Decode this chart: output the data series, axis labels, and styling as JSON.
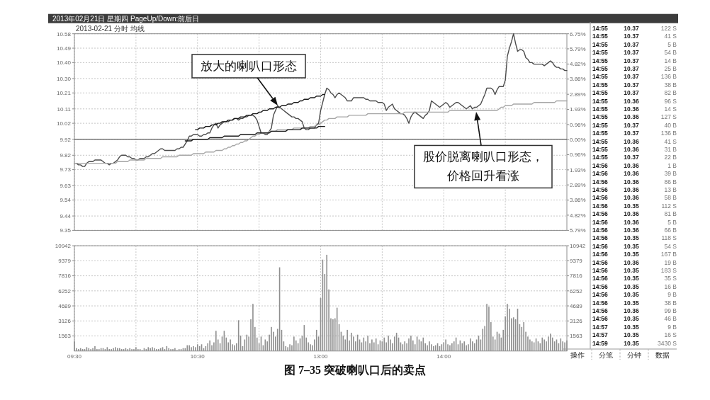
{
  "chart_data": [
    {
      "type": "line",
      "title": "2013年02月21日 星期四 PageUp/Down:前后日",
      "subtitle": "2013-02-21 分时 均线",
      "categories": [
        null,
        null,
        null,
        null,
        null,
        null,
        null,
        null,
        null,
        null,
        null,
        null,
        null,
        null,
        null,
        null,
        null,
        null,
        null,
        null,
        null,
        null,
        null,
        null,
        null,
        null,
        null,
        null,
        null,
        null,
        null,
        null,
        null,
        null,
        null,
        null,
        null,
        null,
        null,
        null,
        null,
        null,
        null,
        null,
        null,
        null,
        null,
        null,
        null,
        null,
        null,
        null,
        null,
        null,
        null,
        null,
        null,
        null,
        null,
        null,
        null,
        null,
        null,
        null,
        null,
        null,
        null,
        null,
        null,
        null,
        null,
        null,
        null,
        null,
        null,
        null,
        null,
        null,
        null,
        null,
        null,
        null,
        null,
        null,
        null,
        null,
        null,
        null,
        null,
        null,
        null,
        null,
        null,
        null,
        null,
        null,
        null,
        null,
        null,
        null,
        null,
        null,
        null,
        null,
        null,
        null,
        null,
        null,
        null,
        null,
        null,
        null,
        null,
        null,
        null,
        null,
        null,
        null,
        null,
        null,
        null,
        null,
        null,
        null,
        null,
        null,
        null,
        null,
        null,
        null,
        null,
        null,
        null,
        null,
        null,
        null,
        null,
        null,
        null,
        null,
        null,
        null,
        null,
        null,
        null,
        null,
        null,
        null,
        null,
        null,
        null,
        null,
        null,
        null,
        null,
        null,
        null,
        null,
        null,
        null,
        null,
        null,
        null,
        null,
        null,
        null,
        null,
        null,
        null,
        null,
        null,
        null,
        null,
        null,
        null,
        null,
        null,
        null,
        null,
        null,
        null,
        null,
        null,
        null,
        null,
        null,
        null,
        null,
        null,
        null,
        null,
        null,
        null,
        null,
        null,
        null,
        null,
        null,
        null,
        null,
        null,
        null,
        null,
        null,
        null,
        null,
        null,
        null,
        null,
        null,
        null,
        null,
        null,
        null,
        null,
        null,
        null,
        null,
        null,
        null,
        null,
        null,
        null,
        null,
        null,
        null,
        null,
        null,
        null,
        null,
        null,
        null,
        null,
        null,
        null,
        null,
        null,
        null,
        null,
        null,
        null
      ],
      "ylim": [
        9.35,
        10.58
      ],
      "yticks": [
        9.35,
        9.44,
        9.54,
        9.63,
        9.73,
        9.82,
        9.92,
        10.02,
        10.11,
        10.21,
        {
          "value": 10.3,
          "label": "10.30"
        },
        {
          "value": 10.4,
          "label": "10.40"
        },
        10.49,
        10.58
      ],
      "y2lim": [
        -5.79,
        6.75
      ],
      "y2ticks": [
        {
          "value": -5.79,
          "label": "5.79%"
        },
        {
          "value": -4.82,
          "label": "4.82%"
        },
        {
          "value": -3.86,
          "label": "3.86%"
        },
        {
          "value": -2.89,
          "label": "2.89%"
        },
        {
          "value": -1.93,
          "label": "1.93%"
        },
        {
          "value": -0.96,
          "label": "0.96%"
        },
        {
          "value": 0,
          "label": "0.00%"
        },
        {
          "value": 0.96,
          "label": "0.96%"
        },
        {
          "value": 1.93,
          "label": "1.93%"
        },
        {
          "value": 2.89,
          "label": "2.89%"
        },
        {
          "value": 3.86,
          "label": "3.86%"
        },
        {
          "value": 4.82,
          "label": "4.82%"
        },
        {
          "value": 5.79,
          "label": "5.79%"
        },
        {
          "value": 6.75,
          "label": "6.75%"
        }
      ],
      "grid": true,
      "ref_lines": [
        {
          "axis": "y",
          "value": 9.92,
          "color": "#555555"
        }
      ],
      "series": [
        {
          "color": "#4d4d4d",
          "values": [
            9.77,
            9.77,
            9.76,
            9.76,
            9.75,
            9.75,
            9.77,
            9.78,
            9.78,
            9.78,
            9.79,
            9.79,
            9.79,
            9.79,
            9.78,
            9.77,
            9.77,
            9.76,
            9.77,
            9.77,
            9.78,
            9.79,
            9.81,
            9.82,
            9.82,
            9.82,
            9.81,
            9.81,
            9.8,
            9.8,
            9.79,
            9.79,
            9.8,
            9.8,
            9.8,
            9.81,
            9.81,
            9.82,
            9.83,
            9.83,
            9.84,
            9.85,
            9.86,
            9.86,
            9.85,
            9.85,
            9.85,
            9.85,
            9.85,
            9.85,
            9.86,
            9.86,
            9.87,
            9.87,
            9.89,
            9.91,
            9.94,
            9.94,
            9.95,
            9.95,
            9.95,
            9.94,
            9.94,
            9.95,
            9.95,
            9.96,
            9.96,
            9.99,
            10.01,
            10.02,
            9.99,
            10.01,
            10.02,
            10.03,
            10.03,
            10.03,
            10.04,
            10.04,
            10.05,
            10.05,
            10.04,
            10.05,
            10.05,
            10.06,
            10.06,
            10.07,
            10.07,
            10.07,
            10.06,
            10.04,
            10.0,
            9.96,
            9.96,
            9.95,
            9.95,
            9.97,
            9.99,
            10.07,
            10.1,
            10.13,
            10.12,
            10.11,
            10.1,
            10.09,
            10.08,
            10.07,
            10.06,
            10.06,
            10.05,
            10.05,
            10.04,
            10.03,
            9.99,
            9.98,
            9.98,
            9.99,
            9.99,
            9.99,
            10.01,
            10.02,
            10.1,
            10.15,
            10.2,
            10.24,
            10.23,
            10.21,
            10.2,
            10.18,
            10.2,
            10.21,
            10.2,
            10.19,
            10.18,
            10.16,
            10.16,
            10.16,
            10.18,
            10.18,
            10.18,
            10.18,
            10.18,
            10.18,
            10.17,
            10.17,
            10.16,
            10.16,
            10.16,
            10.16,
            10.15,
            10.15,
            10.15,
            10.14,
            10.1,
            10.12,
            10.13,
            10.14,
            10.11,
            10.1,
            10.09,
            10.08,
            10.08,
            10.07,
            10.05,
            10.02,
            10.06,
            10.08,
            10.09,
            10.08,
            10.07,
            10.06,
            10.05,
            10.07,
            10.08,
            10.1,
            10.16,
            10.15,
            10.14,
            10.13,
            10.12,
            10.13,
            10.14,
            10.15,
            10.14,
            10.12,
            10.13,
            10.14,
            10.15,
            10.15,
            10.14,
            10.13,
            10.12,
            10.11,
            10.12,
            10.13,
            10.11,
            10.12,
            10.12,
            10.13,
            10.14,
            10.17,
            10.2,
            10.24,
            10.24,
            10.24,
            10.23,
            10.2,
            10.23,
            10.25,
            10.25,
            10.25,
            10.29,
            10.44,
            10.49,
            10.53,
            10.58,
            10.52,
            10.47,
            10.48,
            10.48,
            10.47,
            10.43,
            10.42,
            10.4,
            10.4,
            10.39,
            10.39,
            10.39,
            10.39,
            10.39,
            10.38,
            10.39,
            10.4,
            10.41,
            10.4,
            10.38,
            10.37,
            10.37,
            10.36,
            10.36,
            10.35,
            10.35
          ]
        },
        {
          "color": "#a6a6a6",
          "values": [
            9.77,
            9.77,
            9.77,
            9.77,
            9.77,
            9.77,
            9.77,
            9.77,
            9.77,
            9.77,
            9.77,
            9.77,
            9.77,
            9.77,
            9.77,
            9.77,
            9.77,
            9.77,
            9.77,
            9.77,
            9.77,
            9.78,
            9.78,
            9.78,
            9.78,
            9.78,
            9.78,
            9.79,
            9.79,
            9.79,
            9.79,
            9.79,
            9.79,
            9.79,
            9.79,
            9.8,
            9.8,
            9.8,
            9.8,
            9.8,
            9.8,
            9.8,
            9.8,
            9.81,
            9.81,
            9.81,
            9.81,
            9.81,
            9.81,
            9.81,
            9.81,
            9.82,
            9.82,
            9.82,
            9.82,
            9.82,
            9.82,
            9.82,
            9.83,
            9.83,
            9.83,
            9.83,
            9.83,
            9.83,
            9.84,
            9.84,
            9.84,
            9.84,
            9.84,
            9.85,
            9.85,
            9.85,
            9.85,
            9.86,
            9.86,
            9.87,
            9.87,
            9.88,
            9.88,
            9.89,
            9.89,
            9.9,
            9.9,
            9.91,
            9.91,
            9.92,
            9.93,
            9.94,
            9.94,
            9.95,
            9.95,
            9.96,
            9.96,
            9.96,
            9.96,
            9.97,
            9.97,
            9.97,
            9.97,
            9.98,
            9.98,
            9.98,
            9.98,
            9.98,
            9.98,
            9.98,
            9.98,
            9.99,
            9.99,
            9.99,
            9.99,
            9.99,
            9.99,
            9.99,
            9.99,
            10.0,
            10.0,
            10.0,
            10.01,
            10.01,
            10.02,
            10.03,
            10.04,
            10.04,
            10.05,
            10.05,
            10.05,
            10.05,
            10.06,
            10.06,
            10.06,
            10.06,
            10.06,
            10.06,
            10.07,
            10.07,
            10.07,
            10.07,
            10.07,
            10.07,
            10.07,
            10.07,
            10.07,
            10.08,
            10.08,
            10.08,
            10.08,
            10.08,
            10.08,
            10.08,
            10.08,
            10.08,
            10.08,
            10.08,
            10.08,
            10.08,
            10.08,
            10.08,
            10.08,
            10.08,
            10.08,
            10.09,
            10.09,
            10.09,
            10.09,
            10.09,
            10.09,
            10.09,
            10.09,
            10.09,
            10.09,
            10.09,
            10.09,
            10.09,
            10.09,
            10.09,
            10.09,
            10.09,
            10.09,
            10.09,
            10.09,
            10.09,
            10.09,
            10.1,
            10.1,
            10.1,
            10.1,
            10.1,
            10.1,
            10.1,
            10.1,
            10.1,
            10.1,
            10.1,
            10.1,
            10.1,
            10.1,
            10.1,
            10.1,
            10.1,
            10.1,
            10.1,
            10.1,
            10.1,
            10.1,
            10.1,
            10.1,
            10.11,
            10.12,
            10.12,
            10.13,
            10.13,
            10.13,
            10.13,
            10.14,
            10.14,
            10.14,
            10.14,
            10.14,
            10.14,
            10.14,
            10.14,
            10.14,
            10.14,
            10.15,
            10.15,
            10.15,
            10.15,
            10.15,
            10.15,
            10.15,
            10.15,
            10.15,
            10.15,
            10.15,
            10.16,
            10.16,
            10.16,
            10.16,
            10.16,
            10.16
          ]
        },
        {
          "color": "#1a1a1a",
          "values": [
            null,
            null,
            null,
            null,
            null,
            null,
            null,
            null,
            null,
            null,
            null,
            null,
            null,
            null,
            null,
            null,
            null,
            null,
            null,
            null,
            null,
            null,
            null,
            null,
            null,
            null,
            null,
            null,
            null,
            null,
            null,
            null,
            null,
            null,
            null,
            null,
            null,
            null,
            null,
            null,
            null,
            null,
            null,
            null,
            null,
            null,
            null,
            null,
            null,
            null,
            null,
            null,
            null,
            null,
            null,
            null,
            null,
            null,
            null,
            9.98,
            9.98,
            9.99,
            9.99,
            9.99,
            10.0,
            10.0,
            10.0,
            10.01,
            10.01,
            10.01,
            10.02,
            10.02,
            10.03,
            10.03,
            10.03,
            10.04,
            10.04,
            10.04,
            10.05,
            10.05,
            10.05,
            10.06,
            10.06,
            10.06,
            10.07,
            10.07,
            10.07,
            10.08,
            10.08,
            10.08,
            10.09,
            10.09,
            10.1,
            10.1,
            10.1,
            10.11,
            10.11,
            10.11,
            10.12,
            10.12,
            10.12,
            10.13,
            10.13,
            10.13,
            10.14,
            10.14,
            10.14,
            10.15,
            10.15,
            10.15,
            10.16,
            10.16,
            10.17,
            10.17,
            10.17,
            10.18,
            10.18,
            10.18,
            10.19,
            10.19,
            10.19,
            10.2,
            10.2,
            null,
            null,
            null,
            null,
            null,
            null,
            null,
            null,
            null,
            null,
            null,
            null,
            null,
            null,
            null,
            null,
            null,
            null,
            null,
            null,
            null,
            null,
            null,
            null,
            null,
            null,
            null,
            null,
            null,
            null,
            null,
            null,
            null,
            null,
            null,
            null,
            null,
            null,
            null,
            null,
            null,
            null,
            null,
            null,
            null,
            null,
            null,
            null,
            null,
            null,
            null,
            null,
            null,
            null,
            null,
            null,
            null,
            null,
            null,
            null,
            null,
            null,
            null,
            null,
            null,
            null,
            null,
            null,
            null,
            null,
            null,
            null,
            null,
            null,
            null,
            null,
            null,
            null,
            null,
            null,
            null,
            null,
            null,
            null,
            null,
            null,
            null,
            null,
            null,
            null,
            null,
            null,
            null,
            null,
            null,
            null,
            null,
            null,
            null,
            null,
            null,
            null,
            null,
            null,
            null,
            null,
            null,
            null,
            null,
            null,
            null,
            null,
            null,
            null,
            null,
            null,
            null,
            null
          ]
        },
        {
          "color": "#1a1a1a",
          "values": [
            null,
            null,
            null,
            null,
            null,
            null,
            null,
            null,
            null,
            null,
            null,
            null,
            null,
            null,
            null,
            null,
            null,
            null,
            null,
            null,
            null,
            null,
            null,
            null,
            null,
            null,
            null,
            null,
            null,
            null,
            null,
            null,
            null,
            null,
            null,
            null,
            null,
            null,
            null,
            null,
            null,
            null,
            null,
            null,
            null,
            null,
            null,
            null,
            null,
            null,
            null,
            null,
            null,
            null,
            9.91,
            9.91,
            9.91,
            9.91,
            9.92,
            9.92,
            9.92,
            9.92,
            9.92,
            9.92,
            9.92,
            9.92,
            9.93,
            9.93,
            9.93,
            9.93,
            9.93,
            9.93,
            9.93,
            9.94,
            9.94,
            9.94,
            9.94,
            9.94,
            9.94,
            9.94,
            9.94,
            9.95,
            9.95,
            9.95,
            9.95,
            9.95,
            9.95,
            9.95,
            9.95,
            9.96,
            9.96,
            9.96,
            9.96,
            9.96,
            9.96,
            9.96,
            9.97,
            9.97,
            9.97,
            9.97,
            9.97,
            9.97,
            9.97,
            9.97,
            9.98,
            9.98,
            9.98,
            9.98,
            9.98,
            9.98,
            9.98,
            9.99,
            9.99,
            9.99,
            9.99,
            9.99,
            9.99,
            9.99,
            9.99,
            10.0,
            10.0,
            10.0,
            10.0,
            null,
            null,
            null,
            null,
            null,
            null,
            null,
            null,
            null,
            null,
            null,
            null,
            null,
            null,
            null,
            null,
            null,
            null,
            null,
            null,
            null,
            null,
            null,
            null,
            null,
            null,
            null,
            null,
            null,
            null,
            null,
            null,
            null,
            null,
            null,
            null,
            null,
            null,
            null,
            null,
            null,
            null,
            null,
            null,
            null,
            null,
            null,
            null,
            null,
            null,
            null,
            null,
            null,
            null,
            null,
            null,
            null,
            null,
            null,
            null,
            null,
            null,
            null,
            null,
            null,
            null,
            null,
            null,
            null,
            null,
            null,
            null,
            null,
            null,
            null,
            null,
            null,
            null,
            null,
            null,
            null,
            null,
            null,
            null,
            null,
            null,
            null,
            null,
            null,
            null,
            null,
            null,
            null,
            null,
            null,
            null,
            null,
            null,
            null,
            null,
            null,
            null,
            null,
            null,
            null,
            null,
            null,
            null,
            null,
            null,
            null,
            null,
            null,
            null,
            null,
            null,
            null,
            null
          ]
        }
      ],
      "annotations": [
        "放大的喇叭口形态",
        "股价脱离喇叭口形态，价格回升看涨"
      ]
    },
    {
      "type": "bar",
      "color": "#8f8f8f",
      "categories": [
        "09:30",
        null,
        null,
        null,
        null,
        null,
        null,
        null,
        null,
        null,
        null,
        null,
        null,
        null,
        null,
        null,
        null,
        null,
        null,
        null,
        null,
        null,
        null,
        null,
        null,
        null,
        null,
        null,
        null,
        null,
        null,
        null,
        null,
        null,
        null,
        null,
        null,
        null,
        null,
        null,
        null,
        null,
        null,
        null,
        null,
        null,
        null,
        null,
        null,
        null,
        null,
        null,
        null,
        null,
        null,
        null,
        null,
        null,
        null,
        null,
        "10:30",
        null,
        null,
        null,
        null,
        null,
        null,
        null,
        null,
        null,
        null,
        null,
        null,
        null,
        null,
        null,
        null,
        null,
        null,
        null,
        null,
        null,
        null,
        null,
        null,
        null,
        null,
        null,
        null,
        null,
        null,
        null,
        null,
        null,
        null,
        null,
        null,
        null,
        null,
        null,
        null,
        null,
        null,
        null,
        null,
        null,
        null,
        null,
        null,
        null,
        null,
        null,
        null,
        null,
        null,
        null,
        null,
        null,
        null,
        null,
        "13:00",
        null,
        null,
        null,
        null,
        null,
        null,
        null,
        null,
        null,
        null,
        null,
        null,
        null,
        null,
        null,
        null,
        null,
        null,
        null,
        null,
        null,
        null,
        null,
        null,
        null,
        null,
        null,
        null,
        null,
        null,
        null,
        null,
        null,
        null,
        null,
        null,
        null,
        null,
        null,
        null,
        null,
        null,
        null,
        null,
        null,
        null,
        null,
        null,
        null,
        null,
        null,
        null,
        null,
        null,
        null,
        null,
        null,
        null,
        null,
        "14:00",
        null,
        null,
        null,
        null,
        null,
        null,
        null,
        null,
        null,
        null,
        null,
        null,
        null,
        null,
        null,
        null,
        null,
        null,
        null,
        null,
        null,
        null,
        null,
        null,
        null,
        null,
        null,
        null,
        null,
        null,
        null,
        null,
        null,
        null,
        null,
        null,
        null,
        null,
        null,
        null,
        null,
        null,
        null,
        null,
        null,
        null,
        null,
        null,
        null,
        null,
        null,
        null,
        null,
        null,
        null,
        null,
        null,
        null,
        null,
        null
      ],
      "ylim": [
        0,
        10942
      ],
      "yticks": [
        1563,
        3126,
        4689,
        6252,
        7816,
        9379,
        10942
      ],
      "y2lim": [
        0,
        10942
      ],
      "y2ticks": [
        1563,
        3126,
        4689,
        6252,
        7816,
        9379,
        10942
      ],
      "grid": true,
      "values": [
        1000,
        300,
        200,
        300,
        200,
        200,
        400,
        300,
        200,
        300,
        500,
        200,
        200,
        300,
        300,
        200,
        400,
        200,
        200,
        300,
        400,
        300,
        300,
        200,
        200,
        300,
        200,
        300,
        200,
        200,
        400,
        200,
        200,
        100,
        300,
        200,
        400,
        300,
        400,
        300,
        200,
        200,
        300,
        400,
        200,
        500,
        300,
        200,
        200,
        300,
        100,
        200,
        200,
        300,
        300,
        600,
        600,
        400,
        500,
        400,
        700,
        500,
        700,
        300,
        500,
        800,
        1100,
        600,
        900,
        2100,
        1200,
        800,
        1500,
        2100,
        1400,
        900,
        1200,
        700,
        600,
        800,
        3200,
        1600,
        500,
        1200,
        1700,
        1500,
        3300,
        4900,
        2500,
        1400,
        800,
        1500,
        600,
        1200,
        1000,
        1700,
        2500,
        2000,
        1500,
        2300,
        8700,
        2200,
        1000,
        500,
        400,
        700,
        600,
        1500,
        1100,
        800,
        1300,
        1600,
        2700,
        1400,
        900,
        700,
        600,
        1200,
        2200,
        1500,
        5500,
        9500,
        8000,
        10000,
        6400,
        3400,
        3300,
        3400,
        4500,
        2800,
        2000,
        1600,
        1200,
        2200,
        1100,
        1900,
        1500,
        1000,
        1700,
        1200,
        900,
        1400,
        1000,
        1600,
        800,
        1200,
        900,
        1300,
        700,
        1100,
        1000,
        1400,
        900,
        1600,
        1200,
        800,
        1500,
        1900,
        1400,
        900,
        700,
        1000,
        800,
        1300,
        1600,
        1100,
        700,
        1500,
        1200,
        1000,
        1400,
        800,
        600,
        1000,
        700,
        500,
        600,
        800,
        500,
        700,
        900,
        1200,
        700,
        600,
        800,
        1000,
        1400,
        700,
        1100,
        800,
        1000,
        600,
        700,
        1300,
        1000,
        800,
        1200,
        1600,
        1200,
        2300,
        2600,
        4900,
        4600,
        3000,
        1500,
        1200,
        2000,
        1800,
        1400,
        2200,
        3600,
        4900,
        4400,
        3400,
        3500,
        3300,
        4400,
        2800,
        2500,
        3000,
        2000,
        1500,
        1200,
        1000,
        900,
        1300,
        1000,
        800,
        1400,
        1200,
        1000,
        1500,
        1800,
        1400,
        1000,
        1200,
        800,
        1300,
        1000,
        900,
        1100
      ],
      "annotations": [
        "图 7–35 突破喇叭口后的卖点"
      ]
    },
    {
      "type": "other",
      "annotations": [
        "14:55 10.37 122 S",
        "14:55 10.37 41 S",
        "14:55 10.37 5 B",
        "14:55 10.37 54 B",
        "14:55 10.37 14 B",
        "14:55 10.37 25 B",
        "14:55 10.37 136 B",
        "14:55 10.37 38 B",
        "14:55 10.37 82 B",
        "14:55 10.36 96 S",
        "14:55 10.36 14 S",
        "14:55 10.36 127 S",
        "14:55 10.37 40 B",
        "14:55 10.37 136 B",
        "14:55 10.36 41 S",
        "14:55 10.36 31 B",
        "14:55 10.37 22 B",
        "14:56 10.36 1 B",
        "14:56 10.36 39 B",
        "14:56 10.36 86 B",
        "14:56 10.36 13 B",
        "14:56 10.36 58 B",
        "14:56 10.35 112 S",
        "14:56 10.36 81 B",
        "14:56 10.36 5 B",
        "14:56 10.36 66 B",
        "14:56 10.35 118 S",
        "14:56 10.35 54 S",
        "14:56 10.35 167 B",
        "14:56 10.36 19 B",
        "14:56 10.35 183 S",
        "14:56 10.35 35 S",
        "14:56 10.35 16 B",
        "14:56 10.35 9 B",
        "14:56 10.35 38 B",
        "14:56 10.36 99 B",
        "14:56 10.35 46 B",
        "14:57 10.35 9 B",
        "14:57 10.35 16 S",
        "14:59 10.35 3430 S"
      ]
    },
    {
      "type": "other",
      "annotations": [
        "操作",
        "分笔",
        "分钟",
        "数据"
      ]
    }
  ]
}
